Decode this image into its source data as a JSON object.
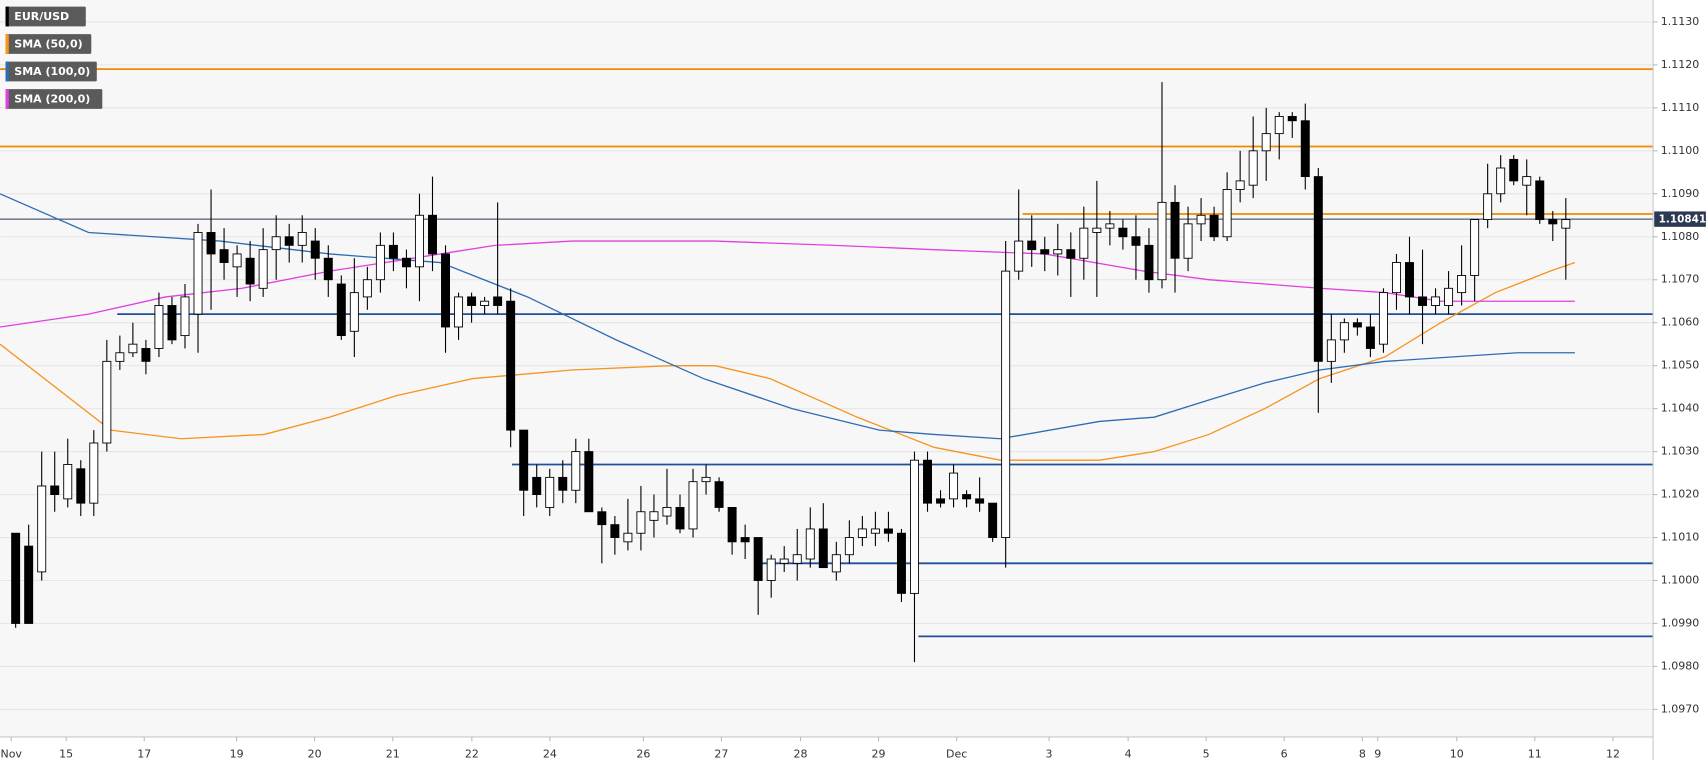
{
  "chart_data": {
    "type": "candlestick",
    "xlim": [
      -1.2,
      125.7
    ],
    "xticks": [
      {
        "value": -0.34,
        "label": "Nov"
      },
      {
        "value": 3.88,
        "label": "15"
      },
      {
        "value": 9.87,
        "label": "17"
      },
      {
        "value": 16.96,
        "label": "19"
      },
      {
        "value": 22.95,
        "label": "20"
      },
      {
        "value": 28.95,
        "label": "21"
      },
      {
        "value": 35.02,
        "label": "22"
      },
      {
        "value": 41.01,
        "label": "24"
      },
      {
        "value": 48.19,
        "label": "26"
      },
      {
        "value": 54.18,
        "label": "27"
      },
      {
        "value": 60.25,
        "label": "28"
      },
      {
        "value": 66.24,
        "label": "29"
      },
      {
        "value": 72.24,
        "label": "Dec"
      },
      {
        "value": 79.33,
        "label": "3"
      },
      {
        "value": 85.4,
        "label": "4"
      },
      {
        "value": 91.39,
        "label": "5"
      },
      {
        "value": 97.38,
        "label": "6"
      },
      {
        "value": 103.38,
        "label": "8"
      },
      {
        "value": 104.56,
        "label": "9"
      },
      {
        "value": 110.63,
        "label": "10"
      },
      {
        "value": 116.62,
        "label": "11"
      },
      {
        "value": 122.62,
        "label": "12"
      }
    ],
    "ylim": [
      1.09636,
      1.11351
    ],
    "yticks": [
      {
        "value": 1.113,
        "label": "1.1130"
      },
      {
        "value": 1.112,
        "label": "1.1120"
      },
      {
        "value": 1.111,
        "label": "1.1110"
      },
      {
        "value": 1.11,
        "label": "1.1100"
      },
      {
        "value": 1.109,
        "label": "1.1090"
      },
      {
        "value": 1.108,
        "label": "1.1080"
      },
      {
        "value": 1.107,
        "label": "1.1070"
      },
      {
        "value": 1.106,
        "label": "1.1060"
      },
      {
        "value": 1.105,
        "label": "1.1050"
      },
      {
        "value": 1.104,
        "label": "1.1040"
      },
      {
        "value": 1.103,
        "label": "1.1030"
      },
      {
        "value": 1.102,
        "label": "1.1020"
      },
      {
        "value": 1.101,
        "label": "1.1010"
      },
      {
        "value": 1.1,
        "label": "1.1000"
      },
      {
        "value": 1.099,
        "label": "1.0990"
      },
      {
        "value": 1.098,
        "label": "1.0980"
      },
      {
        "value": 1.097,
        "label": "1.0970"
      }
    ],
    "grid": true,
    "candles": {
      "name": "EUR/USD",
      "up_color": "#ffffff",
      "down_color": "#000000",
      "open": [
        1.1011,
        1.1008,
        1.1002,
        1.1022,
        1.1019,
        1.1026,
        1.1018,
        1.1032,
        1.1051,
        1.1053,
        1.1054,
        1.1054,
        1.1064,
        1.1057,
        1.1062,
        1.1081,
        1.1077,
        1.1073,
        1.1075,
        1.1068,
        1.1077,
        1.108,
        1.1078,
        1.1079,
        1.1075,
        1.1069,
        1.1058,
        1.1066,
        1.107,
        1.1078,
        1.1075,
        1.1073,
        1.1085,
        1.1076,
        1.1059,
        1.1066,
        1.1064,
        1.1066,
        1.1065,
        1.1035,
        1.1024,
        1.1017,
        1.1024,
        1.1021,
        1.103,
        1.1016,
        1.1013,
        1.1009,
        1.1011,
        1.1014,
        1.1015,
        1.1017,
        1.1012,
        1.1023,
        1.1023,
        1.1017,
        1.101,
        1.101,
        1.1,
        1.1004,
        1.1004,
        1.1005,
        1.1012,
        1.1002,
        1.1006,
        1.101,
        1.1011,
        1.1012,
        1.1011,
        1.0997,
        1.1028,
        1.1019,
        1.1019,
        1.102,
        1.1019,
        1.1018,
        1.101,
        1.1072,
        1.1079,
        1.1077,
        1.1076,
        1.1077,
        1.1075,
        1.1081,
        1.1082,
        1.1082,
        1.108,
        1.1078,
        1.107,
        1.1088,
        1.1075,
        1.1083,
        1.1085,
        1.108,
        1.1091,
        1.1092,
        1.11,
        1.1104,
        1.1108,
        1.1107,
        1.1094,
        1.1051,
        1.1056,
        1.106,
        1.1059,
        1.1055,
        1.1067,
        1.1074,
        1.1066,
        1.1064,
        1.1064,
        1.1067,
        1.1071,
        1.1084,
        1.109,
        1.1098,
        1.1092,
        1.1093,
        1.1084,
        1.1082
      ],
      "high": [
        1.1011,
        1.1013,
        1.103,
        1.103,
        1.1033,
        1.1028,
        1.1035,
        1.1056,
        1.1057,
        1.106,
        1.1056,
        1.1067,
        1.1066,
        1.1069,
        1.1083,
        1.1091,
        1.1082,
        1.1078,
        1.1079,
        1.1082,
        1.1085,
        1.1083,
        1.1085,
        1.1082,
        1.1078,
        1.1071,
        1.1075,
        1.1073,
        1.1081,
        1.1081,
        1.1077,
        1.109,
        1.1094,
        1.1078,
        1.1067,
        1.1067,
        1.1066,
        1.1088,
        1.1068,
        1.1035,
        1.1027,
        1.1026,
        1.1028,
        1.1033,
        1.1033,
        1.1017,
        1.1015,
        1.1019,
        1.1022,
        1.102,
        1.1026,
        1.102,
        1.1026,
        1.1027,
        1.1024,
        1.1017,
        1.1013,
        1.101,
        1.1006,
        1.1008,
        1.1012,
        1.1017,
        1.1018,
        1.1009,
        1.1014,
        1.1015,
        1.1016,
        1.1016,
        1.1012,
        1.103,
        1.103,
        1.1021,
        1.1027,
        1.1021,
        1.1024,
        1.1018,
        1.1079,
        1.1091,
        1.1085,
        1.108,
        1.1083,
        1.1081,
        1.1087,
        1.1093,
        1.1086,
        1.1084,
        1.1085,
        1.1082,
        1.1116,
        1.1092,
        1.1087,
        1.1089,
        1.1087,
        1.1095,
        1.11,
        1.1108,
        1.111,
        1.1109,
        1.1109,
        1.1111,
        1.1096,
        1.1062,
        1.1061,
        1.1061,
        1.1062,
        1.1068,
        1.1076,
        1.108,
        1.1077,
        1.1068,
        1.1072,
        1.1078,
        1.1084,
        1.1097,
        1.1099,
        1.1099,
        1.1098,
        1.1094,
        1.1086,
        1.1089
      ],
      "low": [
        1.0989,
        1.099,
        1.1,
        1.1016,
        1.1017,
        1.1015,
        1.1015,
        1.103,
        1.1049,
        1.1052,
        1.1048,
        1.1052,
        1.1055,
        1.1054,
        1.1053,
        1.1063,
        1.107,
        1.1066,
        1.1065,
        1.1066,
        1.107,
        1.1074,
        1.1074,
        1.107,
        1.1066,
        1.1056,
        1.1052,
        1.1063,
        1.1067,
        1.1072,
        1.1068,
        1.1065,
        1.1072,
        1.1053,
        1.1056,
        1.106,
        1.1062,
        1.1062,
        1.1031,
        1.1015,
        1.1017,
        1.1015,
        1.1018,
        1.1018,
        1.1016,
        1.1004,
        1.1006,
        1.1007,
        1.1007,
        1.101,
        1.1013,
        1.1011,
        1.101,
        1.102,
        1.1016,
        1.1006,
        1.1005,
        1.0992,
        1.0996,
        1.1002,
        1.1,
        1.1003,
        1.1003,
        1.1,
        1.1004,
        1.1008,
        1.1008,
        1.1009,
        1.0995,
        1.0981,
        1.1016,
        1.1017,
        1.1017,
        1.1017,
        1.1016,
        1.1009,
        1.1003,
        1.107,
        1.1073,
        1.1072,
        1.1071,
        1.1066,
        1.107,
        1.1066,
        1.1078,
        1.1077,
        1.107,
        1.1067,
        1.1068,
        1.1067,
        1.1072,
        1.1079,
        1.1079,
        1.1079,
        1.1088,
        1.1089,
        1.1093,
        1.1098,
        1.1103,
        1.1091,
        1.1039,
        1.1046,
        1.1053,
        1.1057,
        1.1052,
        1.1053,
        1.1063,
        1.1062,
        1.1055,
        1.1062,
        1.1062,
        1.1064,
        1.1065,
        1.1082,
        1.1088,
        1.1092,
        1.1085,
        1.1083,
        1.1079,
        1.107
      ],
      "close": [
        1.099,
        1.099,
        1.1022,
        1.102,
        1.1027,
        1.1018,
        1.1032,
        1.1051,
        1.1053,
        1.1055,
        1.1051,
        1.1064,
        1.1056,
        1.1066,
        1.1081,
        1.1076,
        1.1074,
        1.1076,
        1.1069,
        1.1077,
        1.108,
        1.1078,
        1.1081,
        1.1075,
        1.107,
        1.1057,
        1.1067,
        1.107,
        1.1078,
        1.1075,
        1.1073,
        1.1085,
        1.1076,
        1.1059,
        1.1066,
        1.1064,
        1.1065,
        1.1064,
        1.1035,
        1.1021,
        1.102,
        1.1024,
        1.1021,
        1.103,
        1.1016,
        1.1013,
        1.101,
        1.1011,
        1.1016,
        1.1016,
        1.1017,
        1.1012,
        1.1023,
        1.1024,
        1.1017,
        1.1009,
        1.1009,
        1.1,
        1.1005,
        1.1005,
        1.1006,
        1.1012,
        1.1003,
        1.1006,
        1.101,
        1.1012,
        1.1012,
        1.1011,
        1.0997,
        1.1028,
        1.1018,
        1.1018,
        1.1025,
        1.1019,
        1.1018,
        1.101,
        1.1072,
        1.1079,
        1.1077,
        1.1076,
        1.1077,
        1.1075,
        1.1082,
        1.1082,
        1.1083,
        1.108,
        1.1078,
        1.107,
        1.1088,
        1.1075,
        1.1083,
        1.1085,
        1.108,
        1.1091,
        1.1093,
        1.11,
        1.1104,
        1.1108,
        1.1107,
        1.1094,
        1.1051,
        1.1056,
        1.106,
        1.1059,
        1.1054,
        1.1067,
        1.1074,
        1.1066,
        1.1064,
        1.1066,
        1.1068,
        1.1071,
        1.1084,
        1.109,
        1.1096,
        1.1093,
        1.1094,
        1.1084,
        1.1083,
        1.1084
      ]
    },
    "series": [
      {
        "name": "SMA (50,0)",
        "color": "#f7931e",
        "x": [
          -1.2,
          7.3,
          12.7,
          19.1,
          24.1,
          29.2,
          35.1,
          42.7,
          50.3,
          53.7,
          57.9,
          64.6,
          70.5,
          75.6,
          83.2,
          87.4,
          91.6,
          95.9,
          100.1,
          105.1,
          109.4,
          113.6,
          117.8,
          119.7
        ],
        "values": [
          1.1055,
          1.1035,
          1.1033,
          1.1034,
          1.1038,
          1.1043,
          1.1047,
          1.1049,
          1.105,
          1.105,
          1.1047,
          1.1038,
          1.1031,
          1.1028,
          1.1028,
          1.103,
          1.1034,
          1.104,
          1.1047,
          1.1052,
          1.106,
          1.1067,
          1.1072,
          1.1074
        ]
      },
      {
        "name": "SMA (100,0)",
        "color": "#2e6db4",
        "x": [
          -1.2,
          5.6,
          15.7,
          24.1,
          32.6,
          39.3,
          46.1,
          52.8,
          59.6,
          66.3,
          70.5,
          75.6,
          83.2,
          87.4,
          91.6,
          95.9,
          100.1,
          105.1,
          110.2,
          115.3,
          119.7
        ],
        "values": [
          1.109,
          1.1081,
          1.1079,
          1.1076,
          1.1074,
          1.1066,
          1.1056,
          1.1047,
          1.104,
          1.1035,
          1.1034,
          1.1033,
          1.1037,
          1.1038,
          1.1042,
          1.1046,
          1.1049,
          1.1051,
          1.1052,
          1.1053,
          1.1053
        ]
      },
      {
        "name": "SMA (200,0)",
        "color": "#e040e0",
        "x": [
          -1.2,
          5.6,
          11.5,
          17.4,
          24.1,
          32.6,
          36.8,
          42.7,
          49.4,
          53.7,
          62.9,
          70.5,
          79.0,
          86.6,
          91.6,
          95.9,
          100.1,
          105.1,
          109.4,
          119.7
        ],
        "values": [
          1.1059,
          1.1062,
          1.1066,
          1.1068,
          1.1072,
          1.1076,
          1.1078,
          1.1079,
          1.1079,
          1.1079,
          1.1078,
          1.1077,
          1.1076,
          1.1072,
          1.107,
          1.1069,
          1.1068,
          1.1067,
          1.1065,
          1.1065
        ]
      }
    ],
    "levels": [
      {
        "value": 1.1119,
        "start": -1.2,
        "color": "#f08a00"
      },
      {
        "value": 1.1101,
        "start": -1.2,
        "color": "#f08a00"
      },
      {
        "value": 1.10853,
        "start": 77.3,
        "color": "#f08a00"
      },
      {
        "value": 1.1062,
        "start": 7.8,
        "color": "#1f4e9a"
      },
      {
        "value": 1.1027,
        "start": 38.1,
        "color": "#1f4e9a"
      },
      {
        "value": 1.1004,
        "start": 57.0,
        "color": "#1f4e9a"
      },
      {
        "value": 1.0987,
        "start": 69.3,
        "color": "#1f4e9a"
      }
    ],
    "last_price": {
      "value": 1.10841,
      "label": "1.10841",
      "color": "#2b3a52"
    }
  }
}
